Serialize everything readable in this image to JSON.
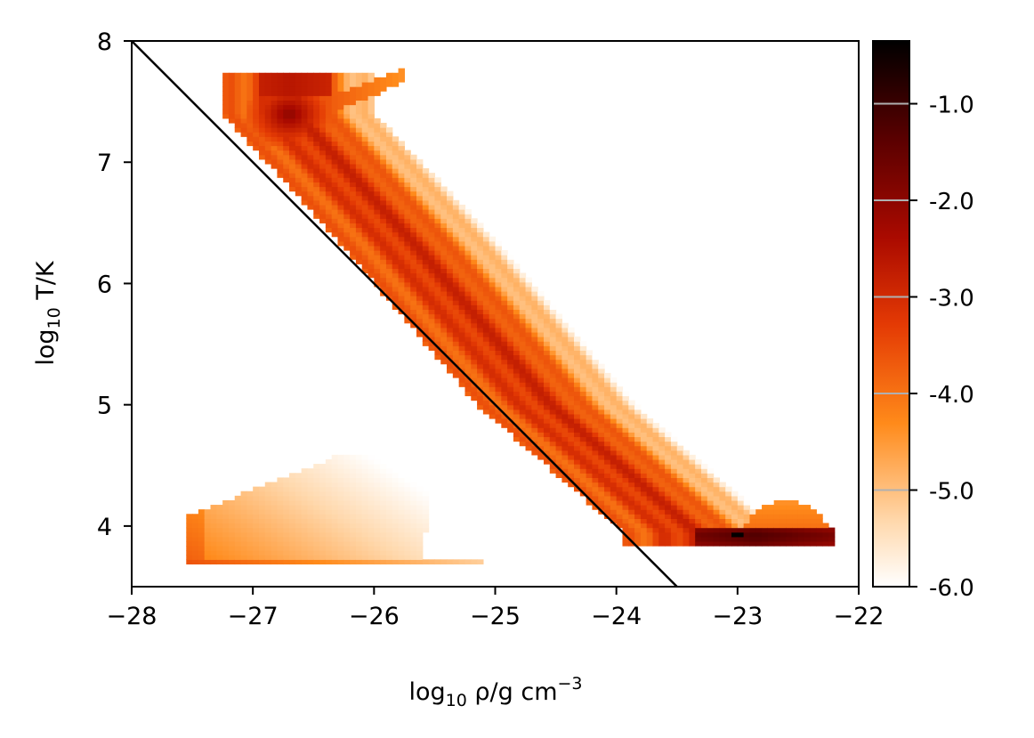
{
  "chart_data": {
    "type": "heatmap",
    "title": "",
    "xlabel": {
      "base": "log",
      "sub": "10",
      "body": " ρ/g cm",
      "sup": "−3"
    },
    "ylabel": {
      "base": "log",
      "sub": "10",
      "body": " T/K"
    },
    "xlim": [
      -28,
      -22
    ],
    "ylim": [
      3.5,
      8
    ],
    "x_ticks": [
      -28,
      -27,
      -26,
      -25,
      -24,
      -23,
      -22
    ],
    "x_tick_labels": [
      "−28",
      "−27",
      "−26",
      "−25",
      "−24",
      "−23",
      "−22"
    ],
    "y_ticks": [
      4,
      5,
      6,
      7,
      8
    ],
    "y_tick_labels": [
      "4",
      "5",
      "6",
      "7",
      "8"
    ],
    "colormap": "gist_heat_r",
    "colorbar": {
      "range": [
        -6.0,
        -0.35
      ],
      "ticks": [
        -6.0,
        -5.0,
        -4.0,
        -3.0,
        -2.0,
        -1.0
      ],
      "tick_labels": [
        "-6.0",
        "-5.0",
        "-4.0",
        "-3.0",
        "-2.0",
        "-1.0"
      ],
      "contour_lines": [
        -5.0,
        -4.0,
        -3.0,
        -2.0,
        -1.0
      ]
    },
    "overlay_line": {
      "from": [
        -28,
        8
      ],
      "to": [
        -23.5,
        3.5
      ],
      "color": "#000000"
    },
    "regions": [
      {
        "name": "main diagonal band",
        "ridge": [
          [
            -26.7,
            7.4
          ],
          [
            -25.7,
            6.3
          ],
          [
            -24.6,
            5.0
          ],
          [
            -23.4,
            3.95
          ]
        ],
        "peak": -3.0
      },
      {
        "name": "hot dense clump",
        "center": [
          -26.7,
          7.4
        ],
        "peak": -2.0
      },
      {
        "name": "cold dense clump",
        "center": [
          -23.0,
          3.9
        ],
        "peak": -0.4
      },
      {
        "name": "low-density cold wedge",
        "x_range": [
          -27.55,
          -25.1
        ],
        "y_range": [
          3.68,
          4.6
        ],
        "peak": -4.2
      }
    ]
  }
}
